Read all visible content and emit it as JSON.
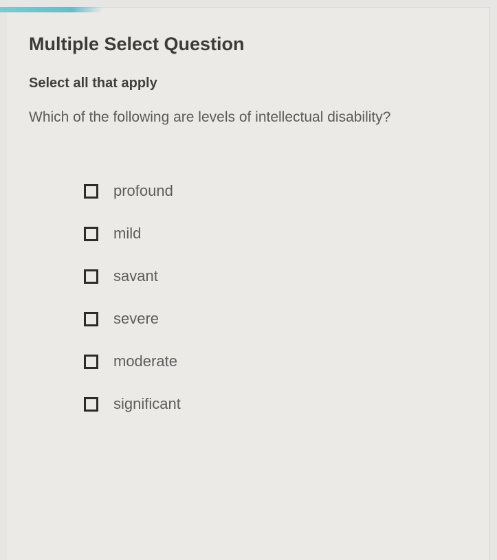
{
  "question": {
    "type_label": "Multiple Select Question",
    "instruction": "Select all that apply",
    "prompt": "Which of the following are levels of intellectual disability?",
    "options": [
      {
        "label": "profound",
        "checked": false
      },
      {
        "label": "mild",
        "checked": false
      },
      {
        "label": "savant",
        "checked": false
      },
      {
        "label": "severe",
        "checked": false
      },
      {
        "label": "moderate",
        "checked": false
      },
      {
        "label": "significant",
        "checked": false
      }
    ]
  },
  "colors": {
    "background": "#e8e6e4",
    "card_bg": "#eceae7",
    "border": "#d4d2ce",
    "heading_text": "#3b3b3b",
    "body_text": "#5a5a5a",
    "checkbox_border": "#2b2b2b",
    "accent": "#4fb4c8"
  }
}
